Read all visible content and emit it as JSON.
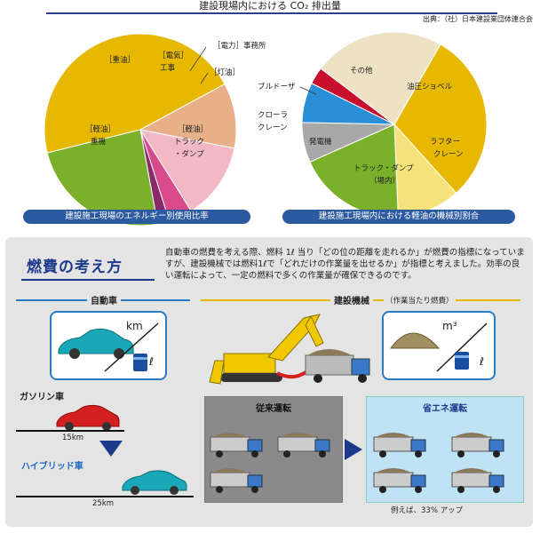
{
  "header": {
    "title": "建設現場内における CO₂ 排出量",
    "source": "出典：（社）日本建設業団体連合会"
  },
  "pie_left": {
    "caption": "建設施工現場のエネルギー別使用比率",
    "labels": {
      "heavy_oil": "［重油］",
      "electricity": "［電気］",
      "electricity_sub": "工事",
      "office": "［電力］事務所",
      "kerosene": "［灯油］",
      "diesel_truck_1": "［軽油］",
      "diesel_truck_2": "トラック",
      "diesel_truck_3": "・ダンプ",
      "diesel_machine_1": "［軽油］",
      "diesel_machine_2": "重機"
    }
  },
  "pie_right": {
    "caption": "建設施工現場内における軽油の機械別割合",
    "labels": {
      "other": "その他",
      "shovel": "油圧ショベル",
      "bulldozer": "ブルドーザ",
      "crawler_1": "クローラ",
      "crawler_2": "クレーン",
      "generator": "発電機",
      "rough_1": "ラフター",
      "rough_2": "クレーン",
      "truck_1": "トラック・ダンプ",
      "truck_2": "（場内）"
    }
  },
  "chart_data": [
    {
      "type": "pie",
      "title": "",
      "categories": [
        "［軽油］重機",
        "［重油］",
        "［電気］工事",
        "［電力］事務所",
        "［灯油］",
        "［軽油］トラック・ダンプ"
      ],
      "values": [
        46,
        11,
        13,
        4,
        2,
        24
      ],
      "colors": [
        "#e6b800",
        "#e8b088",
        "#f2b8c4",
        "#d94a8a",
        "#8a2a6a",
        "#7ab02a"
      ]
    },
    {
      "type": "pie",
      "title": "",
      "categories": [
        "油圧ショベル",
        "ラフタークレーン",
        "トラック・ダンプ（場内）",
        "発電機",
        "クローラクレーン",
        "ブルドーザ",
        "その他"
      ],
      "values": [
        30,
        11,
        19,
        7,
        7,
        3,
        23
      ],
      "colors": [
        "#e6b800",
        "#f5e27a",
        "#7ab02a",
        "#a8a8a8",
        "#2a8fd6",
        "#c8102e",
        "#ede3c4"
      ]
    }
  ],
  "concept": {
    "heading": "燃費の考え方",
    "paragraph": "自動車の燃費を考える際、燃料 1ℓ 当り「どの位の距離を走れるか」が燃費の指標になっていますが、建設機械では燃料1ℓで「どれだけの作業量を出せるか」が指標と考えました。効率の良い運転によって、一定の燃料で多くの作業量が確保できるのです。",
    "car_section": "自動車",
    "machine_section": "建設機械",
    "machine_note": "（作業当たり燃費）",
    "km": "km",
    "liter": "ℓ",
    "m3": "m³",
    "gasoline": "ガソリン車",
    "hybrid": "ハイブリッド車",
    "dist_gas": "15km",
    "dist_hybrid": "25km",
    "conventional": "従来運転",
    "eco": "省エネ運転",
    "gain": "例えば、33% アップ"
  },
  "colors": {
    "accent_blue": "#2c5aa0",
    "accent_yellow": "#e6b800",
    "panel_gray": "#e4e4e4"
  }
}
